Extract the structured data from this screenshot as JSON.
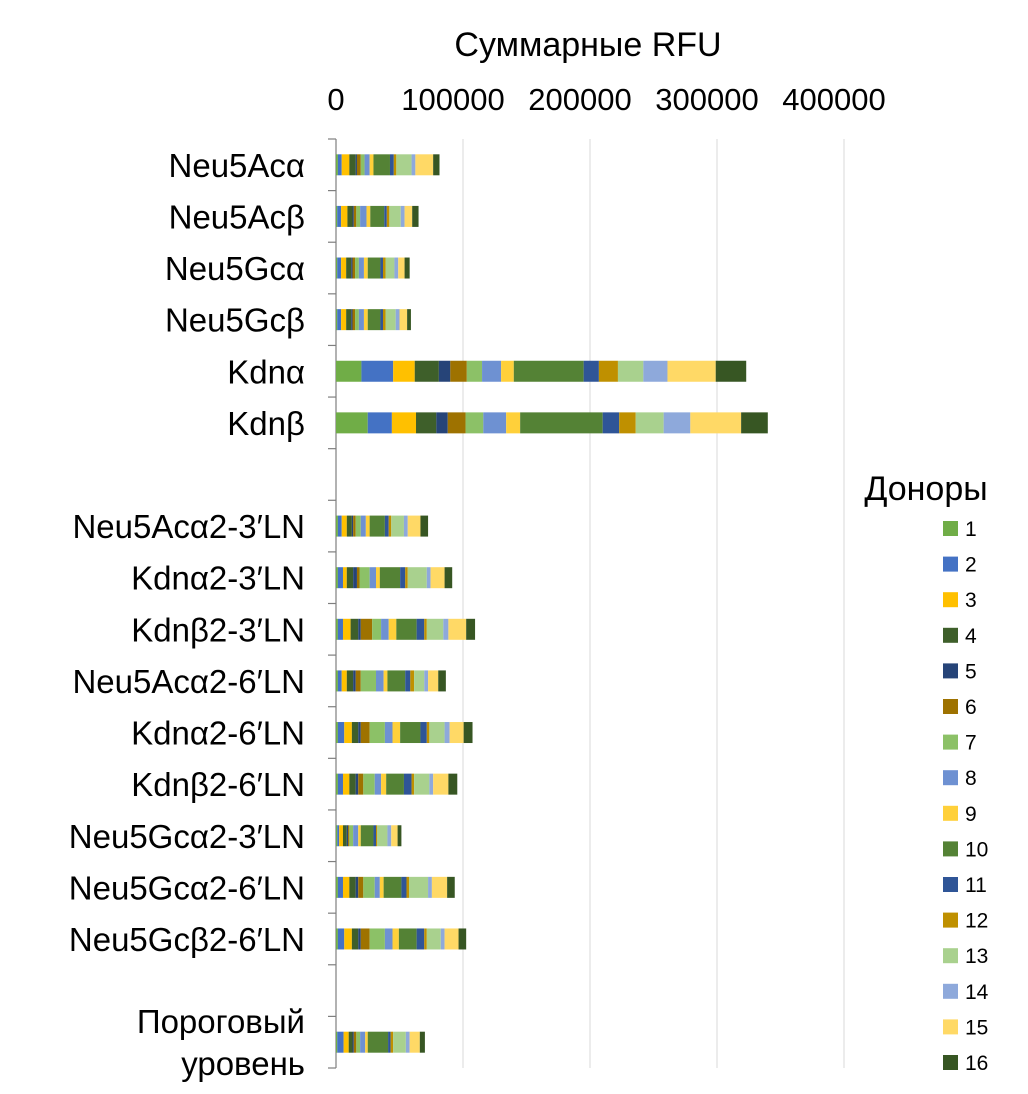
{
  "chart_data": {
    "type": "bar",
    "orientation": "horizontal",
    "stacked": true,
    "title": "Суммарные RFU",
    "xlim": [
      0,
      400000
    ],
    "x_ticks": [
      "0",
      "100000",
      "200000",
      "300000",
      "400000"
    ],
    "grid": true,
    "legend_title": "Доноры",
    "legend_position": "right",
    "categories": [
      "Neu5Acα",
      "Neu5Acβ",
      "Neu5Gcα",
      "Neu5Gcβ",
      "Kdnα",
      "Kdnβ",
      "",
      "Neu5Acα2-3′LN",
      "Kdnα2-3′LN",
      "Kdnβ2-3′LN",
      "Neu5Acα2-6′LN",
      "Kdnα2-6′LN",
      "Kdnβ2-6′LN",
      "Neu5Gcα2-3′LN",
      "Neu5Gcα2-6′LN",
      "Neu5Gcβ2-6′LN",
      "",
      "Пороговый\nуровень"
    ],
    "series": [
      {
        "name": "1",
        "color": "#70AD47",
        "values": [
          1500,
          1000,
          1000,
          1000,
          20000,
          25000,
          0,
          1500,
          1500,
          1500,
          1500,
          1500,
          1500,
          1000,
          1500,
          1500,
          0,
          1000
        ]
      },
      {
        "name": "2",
        "color": "#4472C4",
        "values": [
          3000,
          3000,
          3000,
          3000,
          25000,
          19000,
          0,
          3000,
          4000,
          4000,
          3000,
          5000,
          4000,
          1500,
          4000,
          5000,
          0,
          5000
        ]
      },
      {
        "name": "3",
        "color": "#FFC000",
        "values": [
          6000,
          5000,
          4000,
          4000,
          17000,
          19000,
          0,
          4000,
          3000,
          6000,
          4000,
          6000,
          5000,
          3000,
          5000,
          6000,
          0,
          4000
        ]
      },
      {
        "name": "4",
        "color": "#3E5F2A",
        "values": [
          5000,
          4000,
          4000,
          4000,
          19000,
          16000,
          0,
          4000,
          5000,
          6000,
          5000,
          5000,
          5000,
          3000,
          5000,
          5000,
          0,
          3000
        ]
      },
      {
        "name": "5",
        "color": "#264478",
        "values": [
          1000,
          1000,
          1000,
          1000,
          9000,
          9000,
          0,
          1000,
          3000,
          2000,
          2000,
          2000,
          2000,
          1000,
          2000,
          2000,
          0,
          1000
        ]
      },
      {
        "name": "6",
        "color": "#9E7200",
        "values": [
          3000,
          2000,
          2000,
          2000,
          13000,
          14000,
          0,
          2000,
          2000,
          9000,
          4000,
          7000,
          4000,
          1000,
          4000,
          7000,
          0,
          2000
        ]
      },
      {
        "name": "7",
        "color": "#8CC167",
        "values": [
          3000,
          3000,
          3000,
          3000,
          12000,
          14000,
          0,
          4000,
          8000,
          7000,
          12000,
          12000,
          9000,
          3000,
          9000,
          12000,
          0,
          3000
        ]
      },
      {
        "name": "8",
        "color": "#6E91D2",
        "values": [
          4000,
          5000,
          4000,
          4000,
          15000,
          18000,
          0,
          4000,
          5000,
          6000,
          6000,
          6000,
          5000,
          4000,
          4000,
          6000,
          0,
          4000
        ]
      },
      {
        "name": "9",
        "color": "#FFD03A",
        "values": [
          3000,
          3000,
          3000,
          3000,
          10000,
          11000,
          0,
          3000,
          3000,
          6000,
          3000,
          6000,
          4000,
          2000,
          3000,
          5000,
          0,
          2000
        ]
      },
      {
        "name": "10",
        "color": "#548235",
        "values": [
          13000,
          11000,
          10000,
          10000,
          55000,
          65000,
          0,
          12000,
          16000,
          16000,
          14000,
          16000,
          14000,
          10000,
          14000,
          14000,
          0,
          16000
        ]
      },
      {
        "name": "11",
        "color": "#2F5597",
        "values": [
          3000,
          2000,
          2000,
          2000,
          12000,
          13000,
          0,
          3000,
          4000,
          6000,
          4000,
          5000,
          6000,
          2000,
          4000,
          6000,
          0,
          2000
        ]
      },
      {
        "name": "12",
        "color": "#BF9000",
        "values": [
          2000,
          2000,
          2000,
          2000,
          15000,
          13000,
          0,
          2000,
          2000,
          2000,
          3000,
          2000,
          2000,
          1000,
          2000,
          2000,
          0,
          2000
        ]
      },
      {
        "name": "13",
        "color": "#A9D18E",
        "values": [
          12000,
          9000,
          7000,
          8000,
          20000,
          22000,
          0,
          10000,
          15000,
          13000,
          8000,
          12000,
          12000,
          8000,
          15000,
          11000,
          0,
          10000
        ]
      },
      {
        "name": "14",
        "color": "#8EA9DB",
        "values": [
          3000,
          3000,
          3000,
          3000,
          19000,
          21000,
          0,
          3000,
          3000,
          4000,
          3000,
          4000,
          3000,
          3000,
          3000,
          3000,
          0,
          3000
        ]
      },
      {
        "name": "15",
        "color": "#FFD966",
        "values": [
          14000,
          6000,
          5000,
          6000,
          38000,
          40000,
          0,
          10000,
          11000,
          14000,
          8000,
          11000,
          12000,
          5000,
          12000,
          11000,
          0,
          8000
        ]
      },
      {
        "name": "16",
        "color": "#375623",
        "values": [
          5000,
          5000,
          4000,
          3000,
          24000,
          21000,
          0,
          6000,
          6000,
          7000,
          6000,
          7000,
          7000,
          3000,
          6000,
          6000,
          0,
          4000
        ]
      }
    ]
  }
}
